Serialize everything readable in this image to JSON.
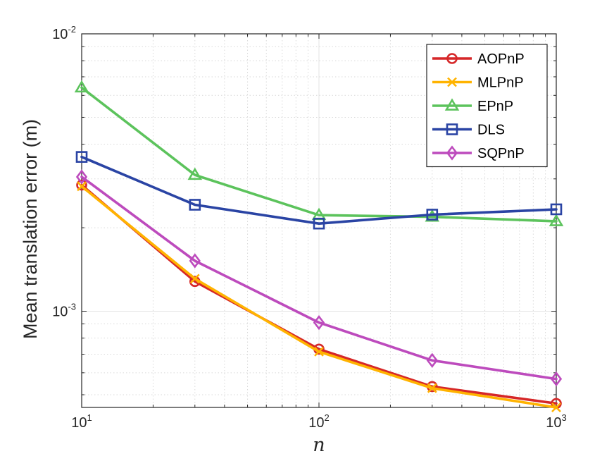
{
  "chart_data": {
    "type": "line",
    "xscale": "log",
    "yscale": "log",
    "x": [
      10,
      30,
      100,
      300,
      1000
    ],
    "xlim": [
      10,
      1000
    ],
    "ylim": [
      0.00045,
      0.01
    ],
    "xlabel": "n",
    "ylabel": "Mean translation error (m)",
    "grid": true,
    "legend_position": "top-right",
    "x_ticks": [
      {
        "base": "10",
        "exp": "1",
        "value": 10
      },
      {
        "base": "10",
        "exp": "2",
        "value": 100
      },
      {
        "base": "10",
        "exp": "3",
        "value": 1000
      }
    ],
    "y_ticks": [
      {
        "base": "10",
        "exp": "-3",
        "value": 0.001
      },
      {
        "base": "10",
        "exp": "-2",
        "value": 0.01
      }
    ],
    "series": [
      {
        "name": "AOPnP",
        "color": "#d62728",
        "marker": "circle",
        "values": [
          0.00285,
          0.00128,
          0.00073,
          0.000535,
          0.000465
        ]
      },
      {
        "name": "MLPnP",
        "color": "#ffb300",
        "marker": "x",
        "values": [
          0.00282,
          0.00131,
          0.000715,
          0.000528,
          0.00045
        ]
      },
      {
        "name": "EPnP",
        "color": "#5cc35c",
        "marker": "triangle",
        "values": [
          0.0064,
          0.0031,
          0.00222,
          0.00219,
          0.00211
        ]
      },
      {
        "name": "DLS",
        "color": "#2a44a4",
        "marker": "square",
        "values": [
          0.0036,
          0.00242,
          0.00207,
          0.00223,
          0.00233
        ]
      },
      {
        "name": "SQPnP",
        "color": "#bd4bbd",
        "marker": "diamond",
        "values": [
          0.00305,
          0.00152,
          0.00091,
          0.000665,
          0.00057
        ]
      }
    ]
  }
}
